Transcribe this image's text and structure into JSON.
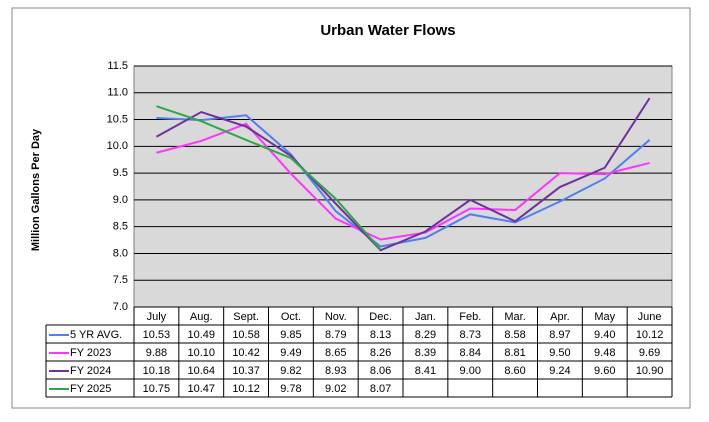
{
  "chart_data": {
    "type": "line",
    "title": "Urban Water Flows",
    "y_label": "Million Gallons Per Day",
    "categories": [
      "July",
      "Aug.",
      "Sept.",
      "Oct.",
      "Nov.",
      "Dec.",
      "Jan.",
      "Feb.",
      "Mar.",
      "Apr.",
      "May",
      "June"
    ],
    "ylim": [
      7.0,
      11.5
    ],
    "yticks": [
      {
        "value": 7.0,
        "label": "7.0"
      },
      7.5,
      {
        "value": 8.0,
        "label": "8.0"
      },
      8.5,
      {
        "value": 9.0,
        "label": "9.0"
      },
      9.5,
      {
        "value": 10.0,
        "label": "10.0"
      },
      10.5,
      {
        "value": 11.0,
        "label": "11.0"
      },
      11.5
    ],
    "grid": true,
    "series": [
      {
        "name": "5 YR AVG.",
        "color": "#4f7ff0",
        "values": [
          10.53,
          10.49,
          10.58,
          9.85,
          8.79,
          8.13,
          8.29,
          8.73,
          8.58,
          8.97,
          9.4,
          10.12
        ],
        "value_labels": [
          "10.53",
          "10.49",
          "10.58",
          "9.85",
          "8.79",
          "8.13",
          "8.29",
          "8.73",
          "8.58",
          "8.97",
          "9.40",
          "10.12"
        ]
      },
      {
        "name": "FY 2023",
        "color": "#ff33ff",
        "values": [
          9.88,
          10.1,
          10.42,
          9.49,
          8.65,
          8.26,
          8.39,
          8.84,
          8.81,
          9.5,
          9.48,
          9.69
        ],
        "value_labels": [
          "9.88",
          "10.10",
          "10.42",
          "9.49",
          "8.65",
          "8.26",
          "8.39",
          "8.84",
          "8.81",
          "9.50",
          "9.48",
          "9.69"
        ]
      },
      {
        "name": "FY 2024",
        "color": "#7030a0",
        "values": [
          10.18,
          10.64,
          10.37,
          9.82,
          8.93,
          8.06,
          8.41,
          9.0,
          8.6,
          9.24,
          9.6,
          10.9
        ],
        "value_labels": [
          "10.18",
          "10.64",
          "10.37",
          "9.82",
          "8.93",
          "8.06",
          "8.41",
          "9.00",
          "8.60",
          "9.24",
          "9.60",
          "10.90"
        ]
      },
      {
        "name": "FY 2025",
        "color": "#2ca844",
        "values": [
          10.75,
          10.47,
          10.12,
          9.78,
          9.02,
          8.07,
          null,
          null,
          null,
          null,
          null,
          null
        ],
        "value_labels": [
          "10.75",
          "10.47",
          "10.12",
          "9.78",
          "9.02",
          "8.07",
          null,
          null,
          null,
          null,
          null,
          null
        ]
      }
    ]
  }
}
